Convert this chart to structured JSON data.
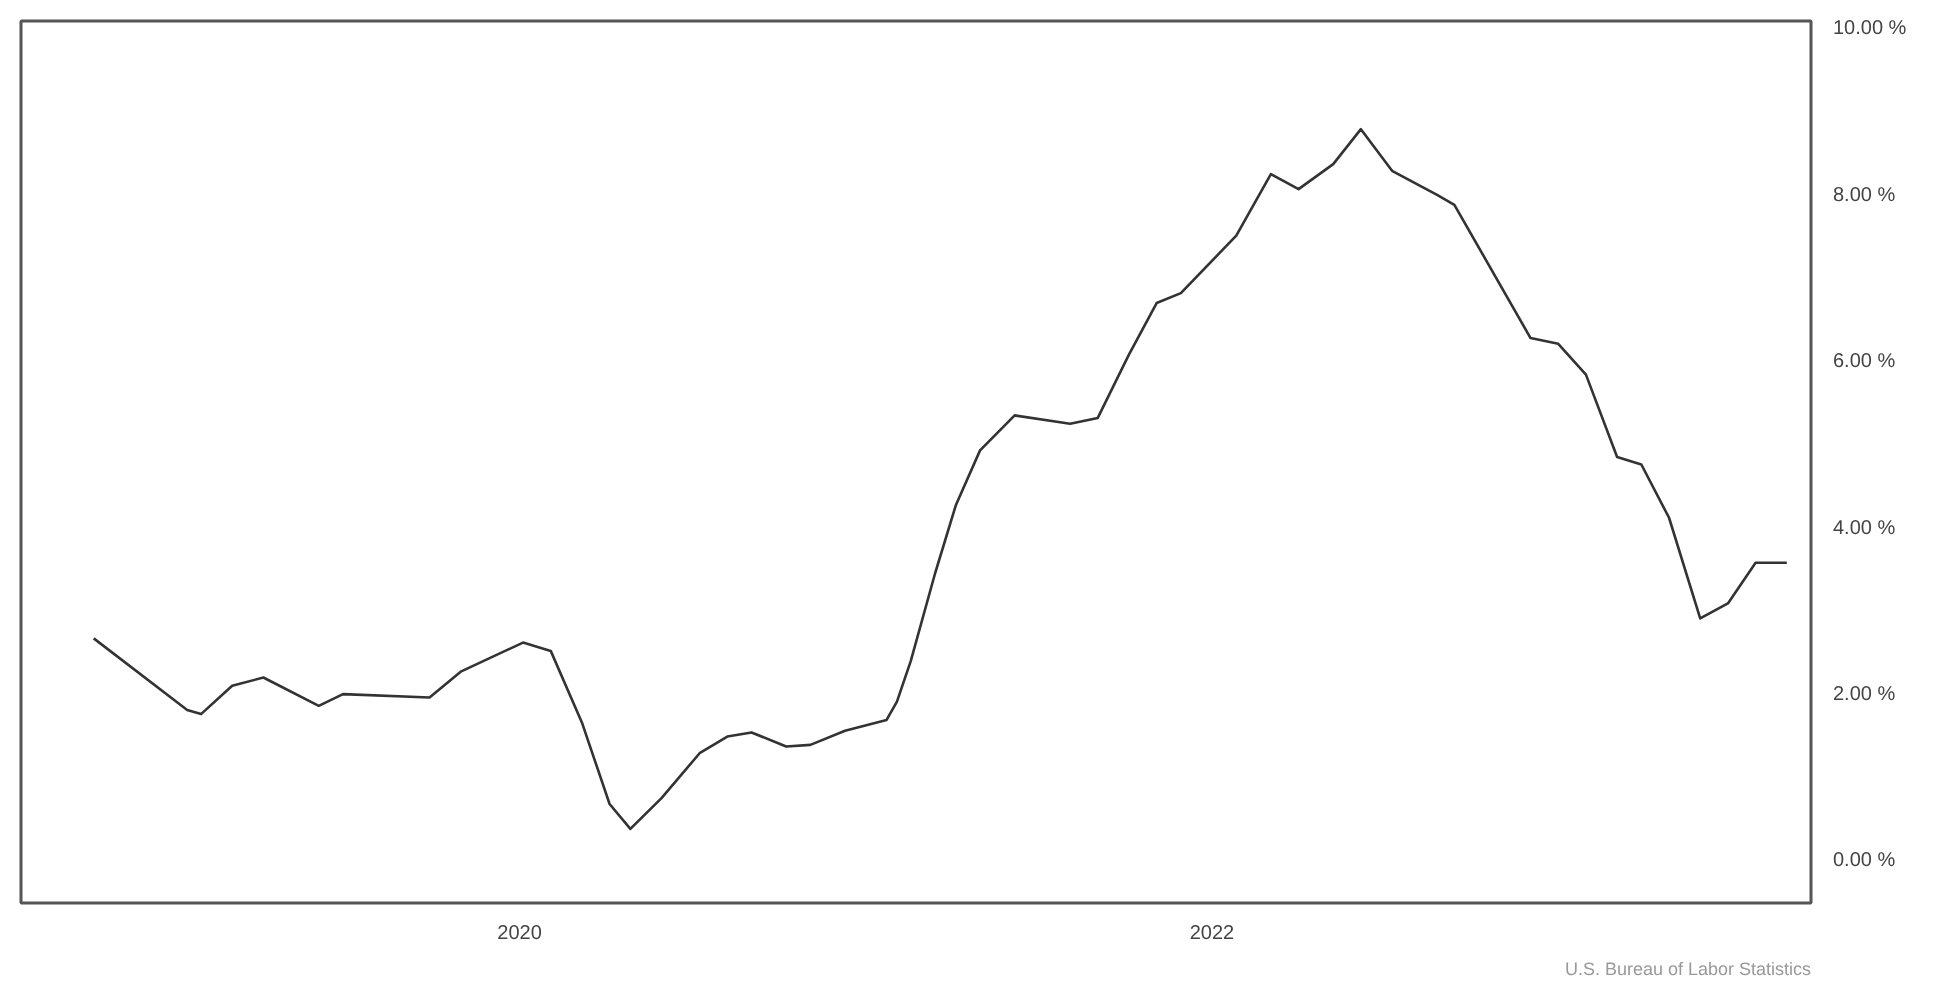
{
  "chart_data": {
    "type": "line",
    "x": [
      2018.77,
      2019.04,
      2019.08,
      2019.17,
      2019.26,
      2019.42,
      2019.49,
      2019.74,
      2019.83,
      2020.01,
      2020.09,
      2020.18,
      2020.26,
      2020.32,
      2020.41,
      2020.52,
      2020.6,
      2020.67,
      2020.77,
      2020.84,
      2020.94,
      2021.06,
      2021.09,
      2021.13,
      2021.2,
      2021.26,
      2021.33,
      2021.43,
      2021.59,
      2021.67,
      2021.76,
      2021.84,
      2021.91,
      2022.07,
      2022.17,
      2022.25,
      2022.35,
      2022.43,
      2022.52,
      2022.65,
      2022.7,
      2022.92,
      2023.0,
      2023.08,
      2023.17,
      2023.24,
      2023.32,
      2023.41,
      2023.49,
      2023.57,
      2023.66
    ],
    "series": [
      {
        "color": "#333333",
        "values": [
          2.68,
          1.82,
          1.77,
          2.11,
          2.21,
          1.87,
          2.01,
          1.97,
          2.28,
          2.63,
          2.53,
          1.67,
          0.69,
          0.39,
          0.76,
          1.3,
          1.5,
          1.55,
          1.38,
          1.4,
          1.57,
          1.7,
          1.92,
          2.41,
          3.46,
          4.28,
          4.94,
          5.36,
          5.26,
          5.33,
          6.09,
          6.71,
          6.83,
          7.52,
          8.26,
          8.08,
          8.38,
          8.8,
          8.3,
          8.01,
          7.89,
          6.29,
          6.22,
          5.85,
          4.86,
          4.77,
          4.13,
          2.92,
          3.1,
          3.59,
          3.59
        ]
      }
    ],
    "xlim": [
      2018.56,
      2023.73
    ],
    "xticks": [
      2020,
      2022
    ],
    "ylim": [
      -0.5,
      10.1
    ],
    "yticks": [
      {
        "value": 0,
        "label": "0.00 %"
      },
      {
        "value": 2,
        "label": "2.00 %"
      },
      {
        "value": 4,
        "label": "4.00 %"
      },
      {
        "value": 6,
        "label": "6.00 %"
      },
      {
        "value": 8,
        "label": "8.00 %"
      },
      {
        "value": 10,
        "label": "10.00 %"
      }
    ],
    "grid": false,
    "line_style": "solid",
    "marker": "none",
    "annotations": [
      "U.S. Bureau of Labor Statistics"
    ]
  }
}
